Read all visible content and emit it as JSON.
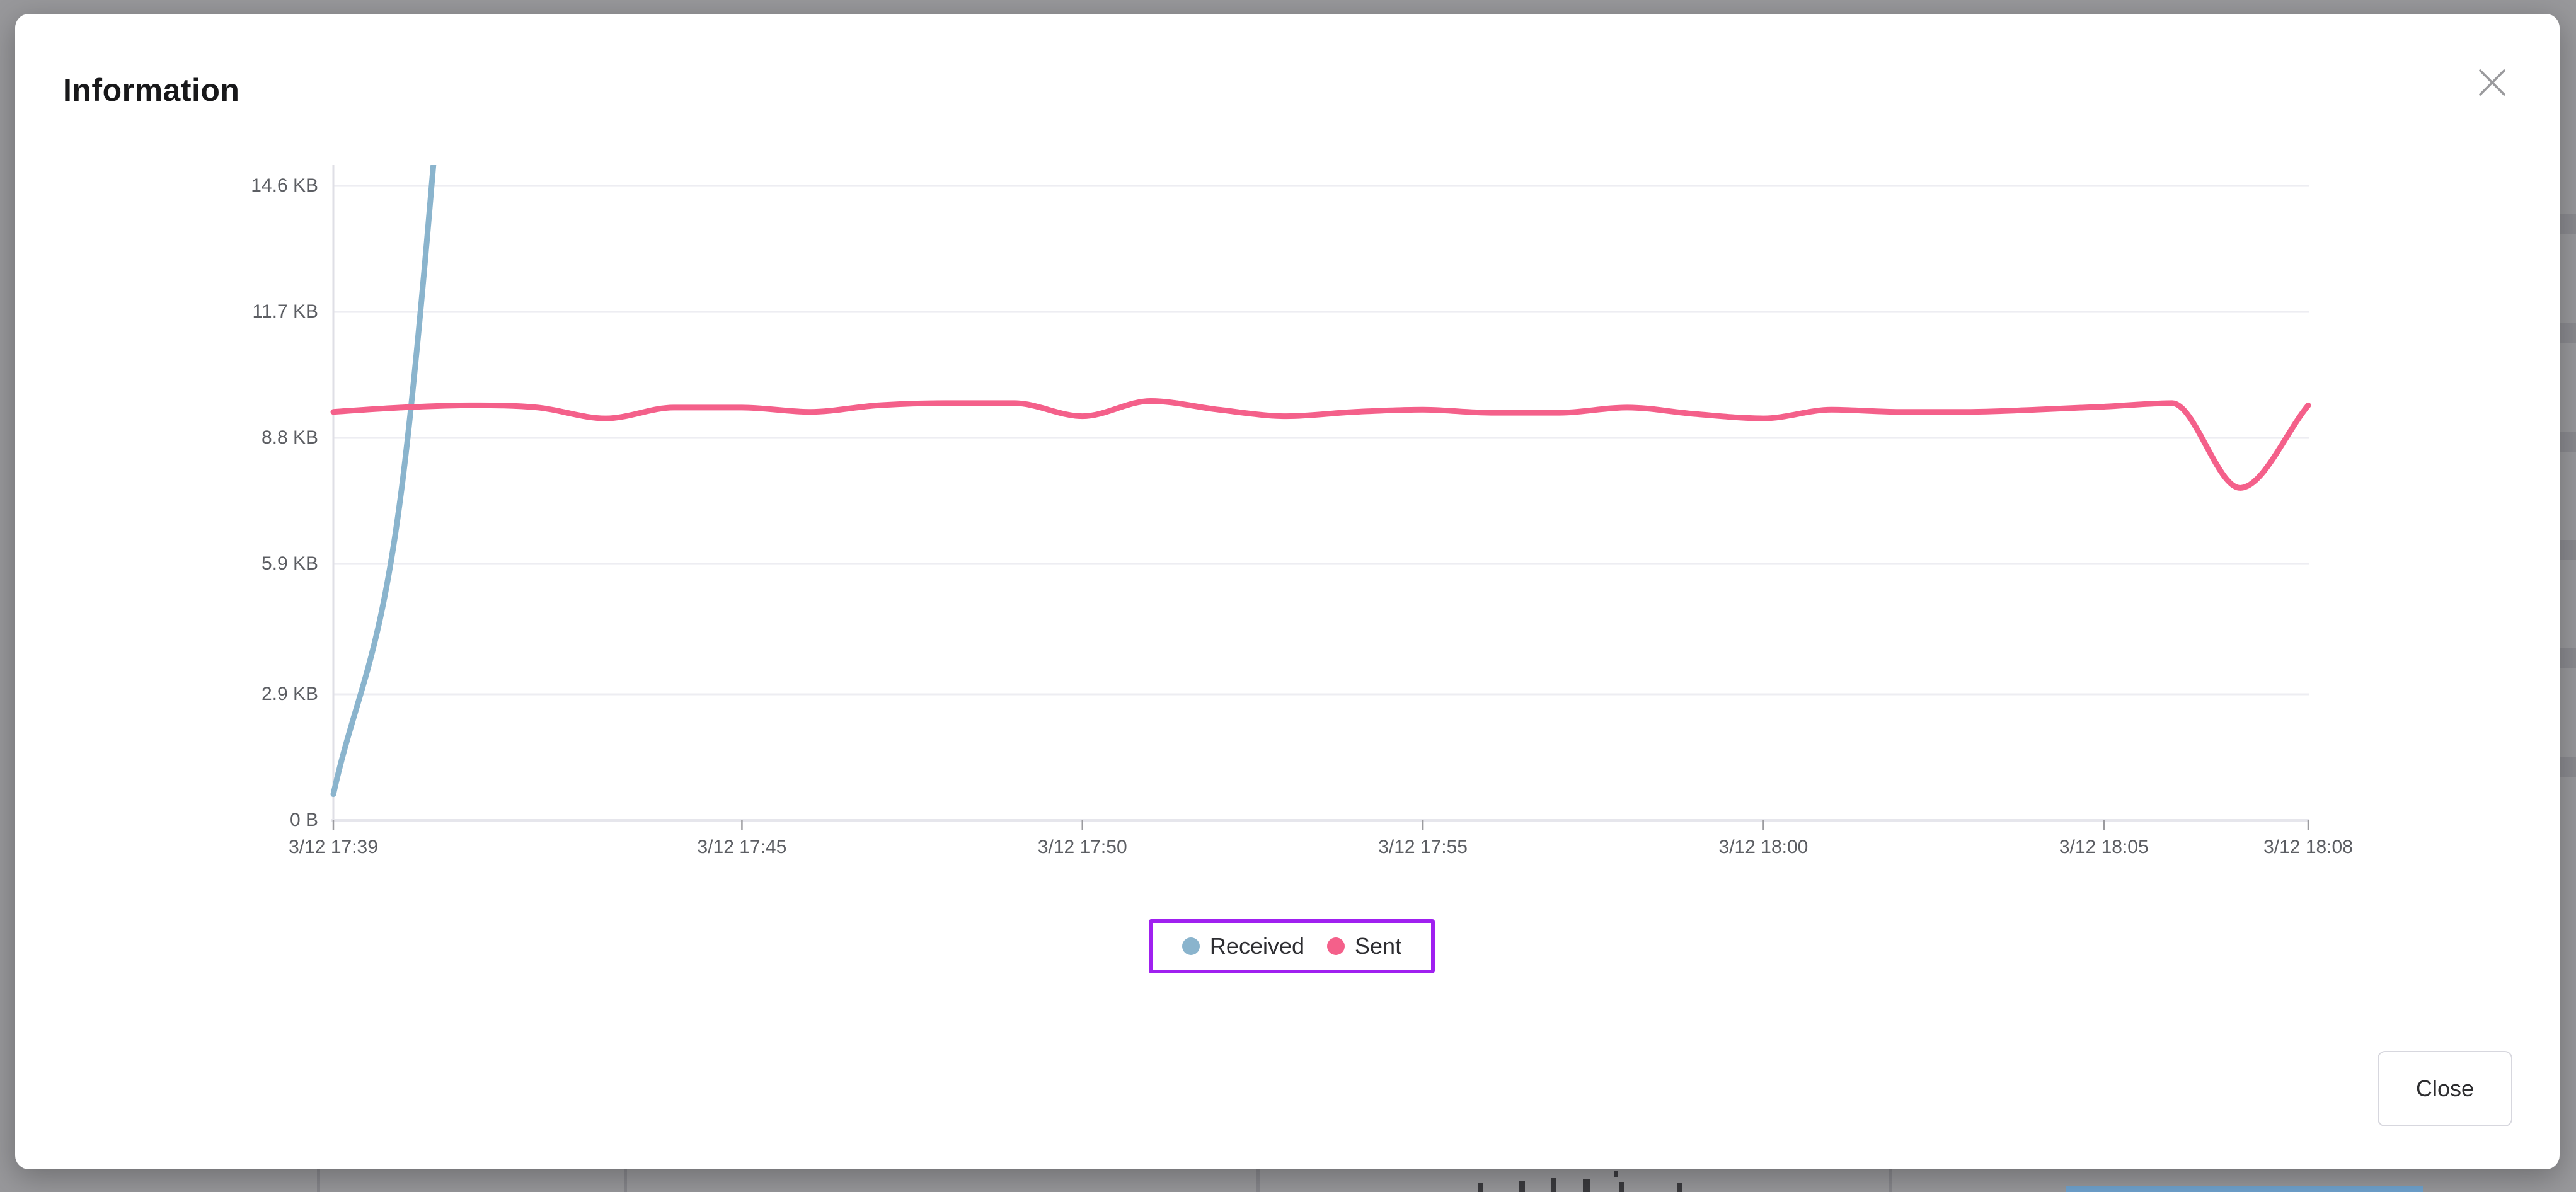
{
  "backdrop": {
    "color": "#98989b"
  },
  "modal": {
    "title": "Information",
    "footer": {
      "close_label": "Close"
    }
  },
  "icons": {
    "close": "x-icon"
  },
  "chart_data": {
    "type": "line",
    "unit": "bytes-per-interval",
    "title": "",
    "xlabel": "",
    "ylabel": "",
    "grid": true,
    "x": [
      "3/12 17:39",
      "3/12 17:40",
      "3/12 17:41",
      "3/12 17:42",
      "3/12 17:43",
      "3/12 17:44",
      "3/12 17:45",
      "3/12 17:46",
      "3/12 17:47",
      "3/12 17:48",
      "3/12 17:49",
      "3/12 17:50",
      "3/12 17:51",
      "3/12 17:52",
      "3/12 17:53",
      "3/12 17:54",
      "3/12 17:55",
      "3/12 17:56",
      "3/12 17:57",
      "3/12 17:58",
      "3/12 17:59",
      "3/12 18:00",
      "3/12 18:01",
      "3/12 18:02",
      "3/12 18:03",
      "3/12 18:04",
      "3/12 18:05",
      "3/12 18:06",
      "3/12 18:07",
      "3/12 18:08"
    ],
    "x_tick_labels": [
      "3/12 17:39",
      "3/12 17:45",
      "3/12 17:50",
      "3/12 17:55",
      "3/12 18:00",
      "3/12 18:05",
      "3/12 18:08"
    ],
    "y_tick_labels": [
      "14.6 KB",
      "11.7 KB",
      "8.8 KB",
      "5.9 KB",
      "2.9 KB",
      "0 B"
    ],
    "y_ticks_kb": [
      14.6,
      11.7,
      8.8,
      5.9,
      2.9,
      0
    ],
    "ylim_kb": [
      0,
      15.1
    ],
    "legend": {
      "position": "bottom",
      "highlight_border_color": "#a020f0",
      "entries": [
        "Received",
        "Sent"
      ]
    },
    "series": [
      {
        "name": "Received",
        "color": "#8ab4cd",
        "clipped_above_axis_max": true,
        "values_kb": [
          0.6,
          7.6,
          25,
          null,
          null,
          null,
          null,
          null,
          null,
          null,
          null,
          null,
          null,
          null,
          null,
          null,
          null,
          null,
          null,
          null,
          null,
          null,
          null,
          null,
          null,
          null,
          null,
          null,
          null,
          null
        ]
      },
      {
        "name": "Sent",
        "color": "#f4608a",
        "clipped_above_axis_max": false,
        "values_kb": [
          9.4,
          9.5,
          9.55,
          9.5,
          9.25,
          9.5,
          9.5,
          9.4,
          9.55,
          9.6,
          9.6,
          9.3,
          9.65,
          9.45,
          9.3,
          9.4,
          9.45,
          9.38,
          9.38,
          9.5,
          9.35,
          9.25,
          9.45,
          9.4,
          9.4,
          9.45,
          9.52,
          9.6,
          7.65,
          9.55
        ]
      }
    ]
  }
}
